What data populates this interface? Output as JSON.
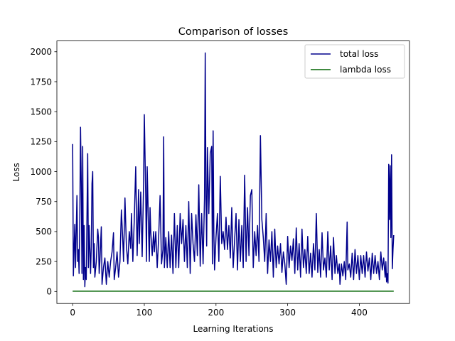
{
  "chart_data": {
    "type": "line",
    "title": "Comparison of losses",
    "xlabel": "Learning Iterations",
    "ylabel": "Loss",
    "xlim": [
      -22,
      470
    ],
    "ylim": [
      -100,
      2090
    ],
    "x_ticks": [
      0,
      100,
      200,
      300,
      400
    ],
    "y_ticks": [
      0,
      250,
      500,
      750,
      1000,
      1250,
      1500,
      1750,
      2000
    ],
    "grid": false,
    "legend": "top-right",
    "series": [
      {
        "name": "total loss",
        "color": "#00008b",
        "points": [
          [
            0,
            1230
          ],
          [
            1,
            130
          ],
          [
            3,
            560
          ],
          [
            4,
            200
          ],
          [
            6,
            800
          ],
          [
            7,
            250
          ],
          [
            8,
            350
          ],
          [
            9,
            150
          ],
          [
            10,
            600
          ],
          [
            11,
            1370
          ],
          [
            12,
            900
          ],
          [
            13,
            150
          ],
          [
            14,
            1210
          ],
          [
            15,
            100
          ],
          [
            16,
            550
          ],
          [
            17,
            40
          ],
          [
            18,
            200
          ],
          [
            19,
            100
          ],
          [
            21,
            1150
          ],
          [
            22,
            200
          ],
          [
            23,
            550
          ],
          [
            25,
            150
          ],
          [
            26,
            380
          ],
          [
            27,
            900
          ],
          [
            28,
            1000
          ],
          [
            29,
            200
          ],
          [
            30,
            400
          ],
          [
            31,
            120
          ],
          [
            33,
            250
          ],
          [
            35,
            520
          ],
          [
            36,
            450
          ],
          [
            37,
            150
          ],
          [
            38,
            250
          ],
          [
            40,
            540
          ],
          [
            41,
            60
          ],
          [
            43,
            200
          ],
          [
            45,
            280
          ],
          [
            47,
            60
          ],
          [
            49,
            250
          ],
          [
            51,
            120
          ],
          [
            53,
            250
          ],
          [
            55,
            330
          ],
          [
            57,
            490
          ],
          [
            58,
            100
          ],
          [
            60,
            200
          ],
          [
            62,
            330
          ],
          [
            64,
            120
          ],
          [
            66,
            250
          ],
          [
            68,
            680
          ],
          [
            70,
            420
          ],
          [
            71,
            250
          ],
          [
            73,
            780
          ],
          [
            75,
            380
          ],
          [
            77,
            230
          ],
          [
            79,
            500
          ],
          [
            81,
            360
          ],
          [
            82,
            650
          ],
          [
            84,
            250
          ],
          [
            86,
            600
          ],
          [
            88,
            1040
          ],
          [
            90,
            300
          ],
          [
            92,
            850
          ],
          [
            93,
            400
          ],
          [
            95,
            830
          ],
          [
            97,
            290
          ],
          [
            99,
            900
          ],
          [
            100,
            1475
          ],
          [
            102,
            780
          ],
          [
            103,
            250
          ],
          [
            104,
            1040
          ],
          [
            106,
            500
          ],
          [
            107,
            250
          ],
          [
            108,
            700
          ],
          [
            109,
            500
          ],
          [
            111,
            300
          ],
          [
            113,
            500
          ],
          [
            114,
            330
          ],
          [
            116,
            500
          ],
          [
            118,
            200
          ],
          [
            120,
            450
          ],
          [
            122,
            800
          ],
          [
            124,
            230
          ],
          [
            126,
            350
          ],
          [
            127,
            1290
          ],
          [
            128,
            200
          ],
          [
            130,
            450
          ],
          [
            132,
            200
          ],
          [
            134,
            500
          ],
          [
            136,
            200
          ],
          [
            138,
            470
          ],
          [
            140,
            150
          ],
          [
            142,
            650
          ],
          [
            144,
            200
          ],
          [
            146,
            550
          ],
          [
            148,
            200
          ],
          [
            150,
            650
          ],
          [
            152,
            400
          ],
          [
            154,
            600
          ],
          [
            156,
            250
          ],
          [
            158,
            550
          ],
          [
            160,
            200
          ],
          [
            162,
            750
          ],
          [
            164,
            150
          ],
          [
            166,
            650
          ],
          [
            168,
            400
          ],
          [
            170,
            250
          ],
          [
            172,
            640
          ],
          [
            174,
            300
          ],
          [
            176,
            890
          ],
          [
            178,
            210
          ],
          [
            180,
            650
          ],
          [
            182,
            230
          ],
          [
            184,
            780
          ],
          [
            185,
            1990
          ],
          [
            186,
            800
          ],
          [
            187,
            380
          ],
          [
            188,
            1200
          ],
          [
            190,
            650
          ],
          [
            192,
            1150
          ],
          [
            194,
            1210
          ],
          [
            195,
            230
          ],
          [
            196,
            1340
          ],
          [
            197,
            500
          ],
          [
            198,
            180
          ],
          [
            200,
            450
          ],
          [
            202,
            650
          ],
          [
            204,
            250
          ],
          [
            206,
            960
          ],
          [
            208,
            400
          ],
          [
            210,
            500
          ],
          [
            212,
            350
          ],
          [
            214,
            620
          ],
          [
            216,
            350
          ],
          [
            218,
            550
          ],
          [
            220,
            280
          ],
          [
            222,
            700
          ],
          [
            224,
            200
          ],
          [
            226,
            430
          ],
          [
            228,
            650
          ],
          [
            230,
            180
          ],
          [
            232,
            600
          ],
          [
            234,
            250
          ],
          [
            236,
            550
          ],
          [
            238,
            200
          ],
          [
            240,
            970
          ],
          [
            242,
            250
          ],
          [
            244,
            700
          ],
          [
            246,
            300
          ],
          [
            248,
            800
          ],
          [
            250,
            850
          ],
          [
            252,
            200
          ],
          [
            254,
            500
          ],
          [
            256,
            300
          ],
          [
            258,
            550
          ],
          [
            260,
            250
          ],
          [
            262,
            1300
          ],
          [
            264,
            600
          ],
          [
            266,
            450
          ],
          [
            268,
            250
          ],
          [
            270,
            650
          ],
          [
            272,
            150
          ],
          [
            274,
            430
          ],
          [
            276,
            250
          ],
          [
            278,
            500
          ],
          [
            280,
            120
          ],
          [
            282,
            520
          ],
          [
            284,
            200
          ],
          [
            286,
            380
          ],
          [
            288,
            230
          ],
          [
            290,
            400
          ],
          [
            292,
            160
          ],
          [
            294,
            330
          ],
          [
            296,
            230
          ],
          [
            298,
            60
          ],
          [
            300,
            460
          ],
          [
            302,
            200
          ],
          [
            304,
            380
          ],
          [
            306,
            260
          ],
          [
            308,
            440
          ],
          [
            310,
            150
          ],
          [
            312,
            530
          ],
          [
            314,
            180
          ],
          [
            316,
            400
          ],
          [
            318,
            120
          ],
          [
            320,
            520
          ],
          [
            322,
            200
          ],
          [
            324,
            350
          ],
          [
            326,
            150
          ],
          [
            328,
            460
          ],
          [
            330,
            150
          ],
          [
            332,
            320
          ],
          [
            334,
            120
          ],
          [
            336,
            400
          ],
          [
            338,
            180
          ],
          [
            340,
            650
          ],
          [
            342,
            160
          ],
          [
            344,
            350
          ],
          [
            346,
            120
          ],
          [
            348,
            490
          ],
          [
            350,
            180
          ],
          [
            352,
            280
          ],
          [
            354,
            120
          ],
          [
            356,
            500
          ],
          [
            358,
            180
          ],
          [
            360,
            380
          ],
          [
            362,
            100
          ],
          [
            364,
            450
          ],
          [
            366,
            150
          ],
          [
            368,
            300
          ],
          [
            370,
            150
          ],
          [
            372,
            230
          ],
          [
            373,
            60
          ],
          [
            375,
            230
          ],
          [
            377,
            130
          ],
          [
            379,
            250
          ],
          [
            381,
            100
          ],
          [
            383,
            580
          ],
          [
            384,
            180
          ],
          [
            386,
            230
          ],
          [
            388,
            120
          ],
          [
            390,
            320
          ],
          [
            392,
            100
          ],
          [
            394,
            350
          ],
          [
            396,
            150
          ],
          [
            398,
            300
          ],
          [
            400,
            100
          ],
          [
            402,
            300
          ],
          [
            404,
            150
          ],
          [
            406,
            300
          ],
          [
            408,
            120
          ],
          [
            410,
            330
          ],
          [
            412,
            170
          ],
          [
            414,
            280
          ],
          [
            416,
            100
          ],
          [
            418,
            320
          ],
          [
            420,
            150
          ],
          [
            422,
            300
          ],
          [
            424,
            150
          ],
          [
            426,
            250
          ],
          [
            428,
            100
          ],
          [
            430,
            330
          ],
          [
            432,
            180
          ],
          [
            434,
            280
          ],
          [
            436,
            120
          ],
          [
            437,
            250
          ],
          [
            438,
            80
          ],
          [
            439,
            150
          ],
          [
            440,
            70
          ],
          [
            441,
            1060
          ],
          [
            442,
            600
          ],
          [
            443,
            1050
          ],
          [
            444,
            450
          ],
          [
            445,
            1140
          ],
          [
            446,
            190
          ],
          [
            447,
            350
          ],
          [
            448,
            470
          ]
        ]
      },
      {
        "name": "lambda loss",
        "color": "#006400",
        "points": [
          [
            0,
            3
          ],
          [
            448,
            3
          ]
        ]
      }
    ]
  }
}
